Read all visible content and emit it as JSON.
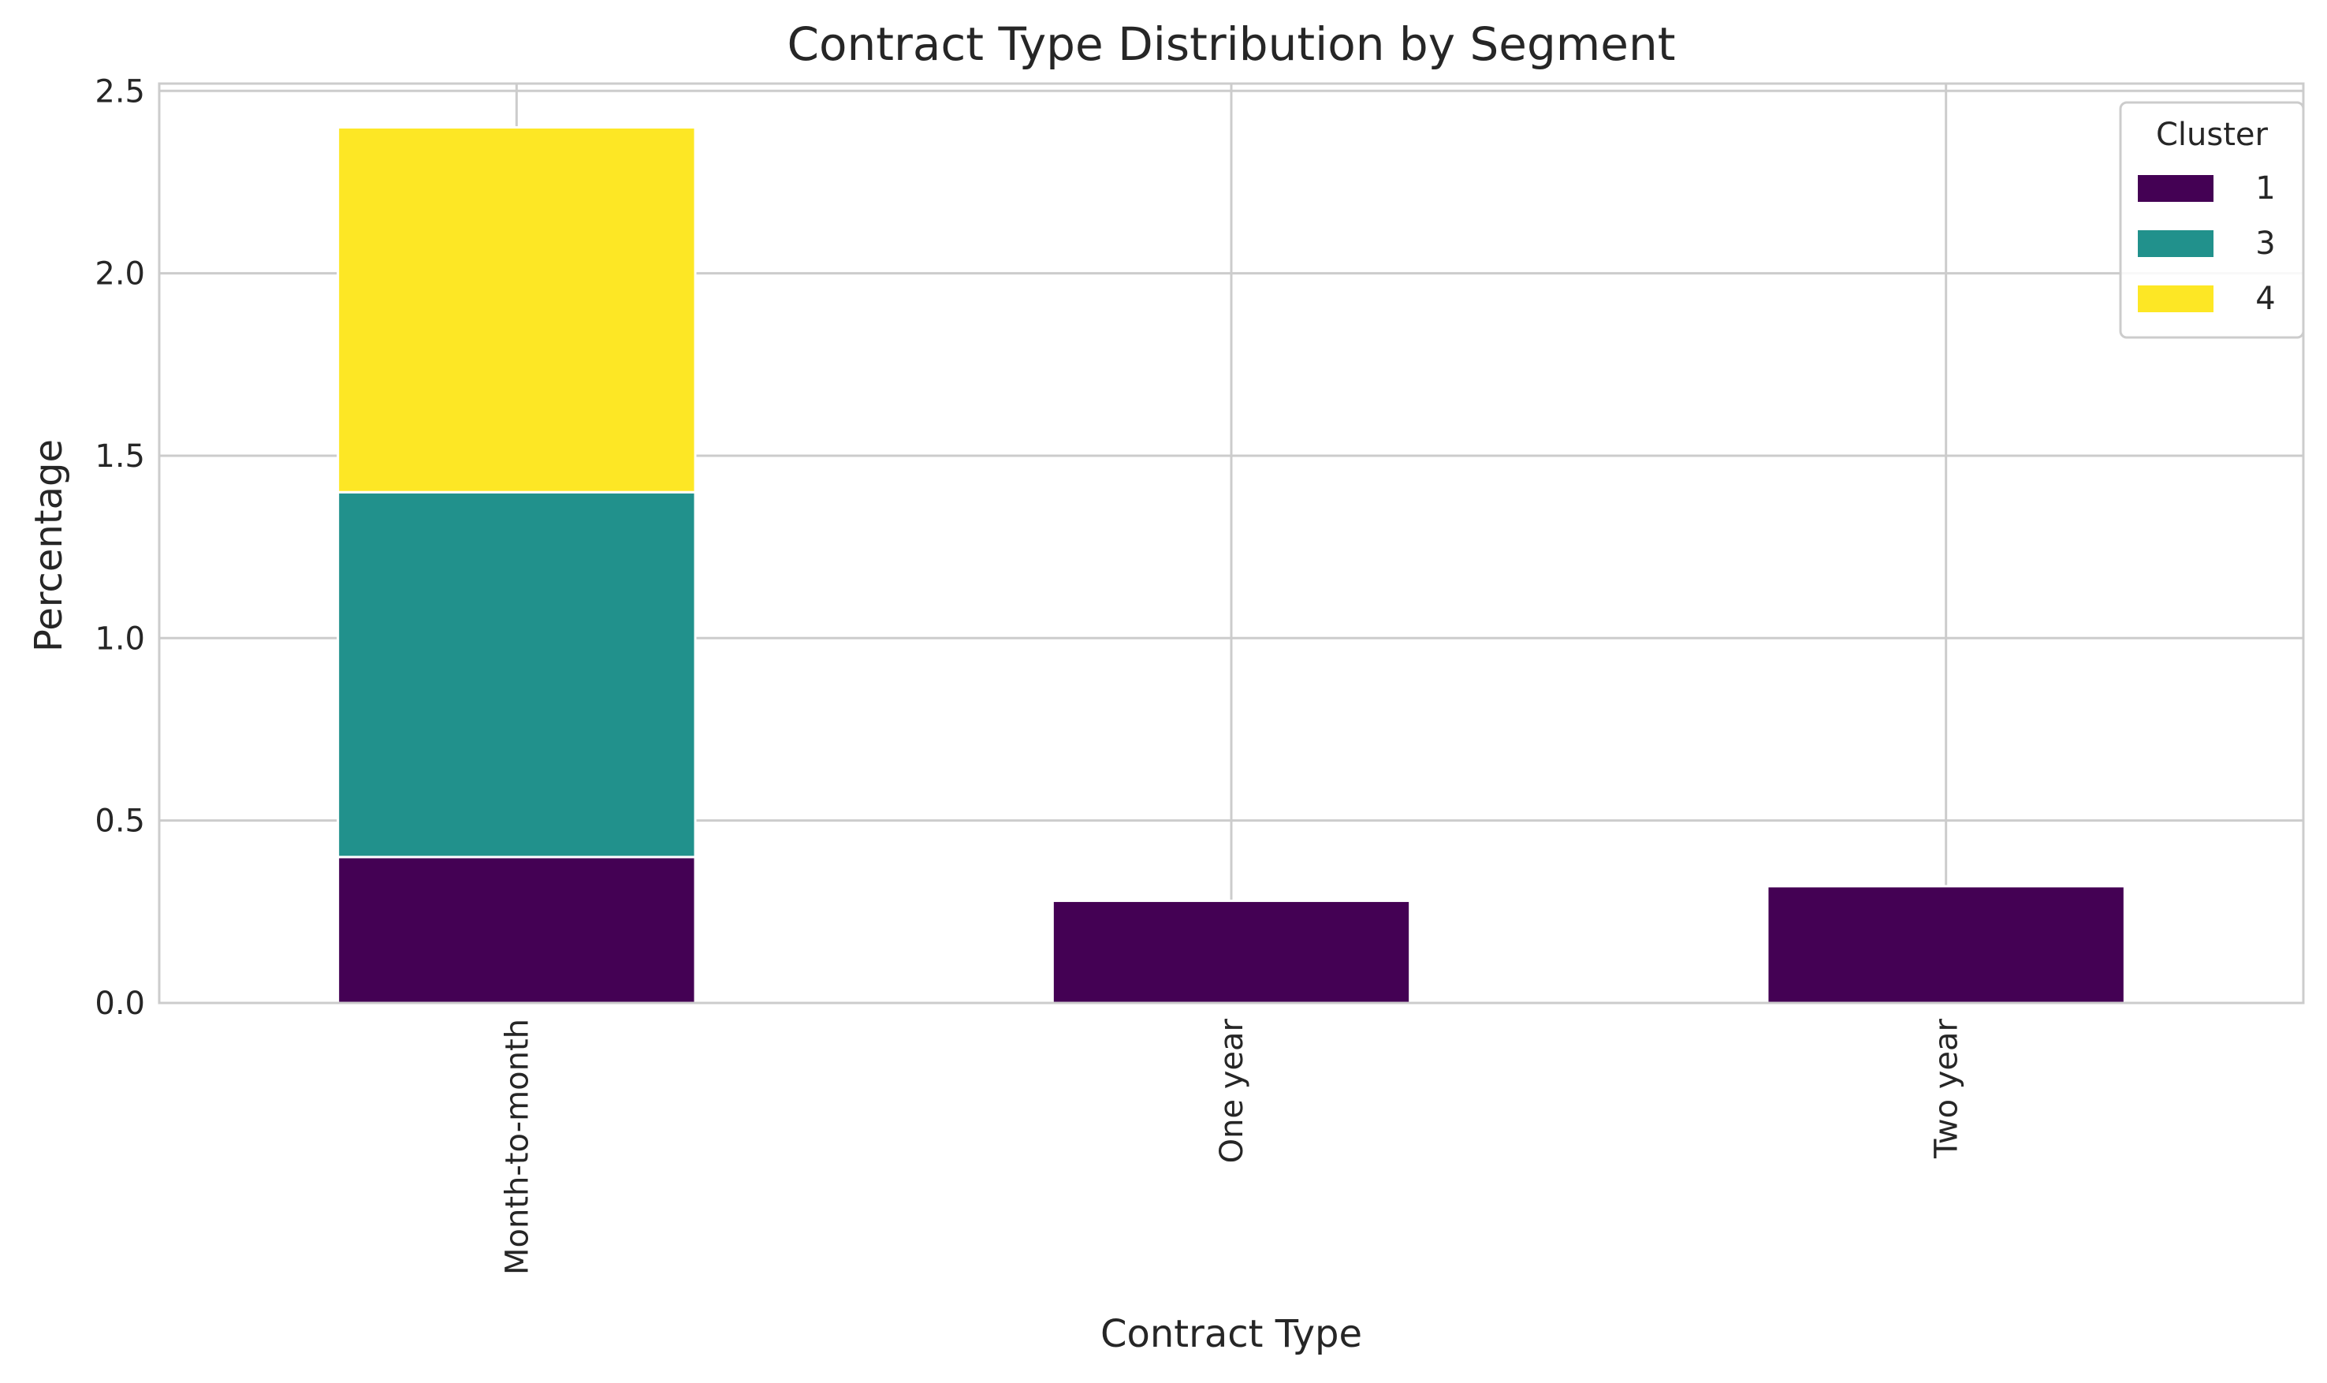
{
  "chart_data": {
    "type": "bar",
    "stacked": true,
    "title": "Contract Type Distribution by Segment",
    "xlabel": "Contract Type",
    "ylabel": "Percentage",
    "categories": [
      "Month-to-month",
      "One year",
      "Two year"
    ],
    "series": [
      {
        "name": "1",
        "values": [
          0.4,
          0.28,
          0.32
        ],
        "color": "#440154"
      },
      {
        "name": "3",
        "values": [
          1.0,
          0,
          0
        ],
        "color": "#21918c"
      },
      {
        "name": "4",
        "values": [
          1.0,
          0,
          0
        ],
        "color": "#fde725"
      }
    ],
    "ylim": [
      0,
      2.52
    ],
    "yticks": [
      0.0,
      0.5,
      1.0,
      1.5,
      2.0,
      2.5
    ],
    "ytick_labels": [
      "0.0",
      "0.5",
      "1.0",
      "1.5",
      "2.0",
      "2.5"
    ],
    "grid": true,
    "legend": {
      "title": "Cluster",
      "placement": "top-right"
    }
  }
}
